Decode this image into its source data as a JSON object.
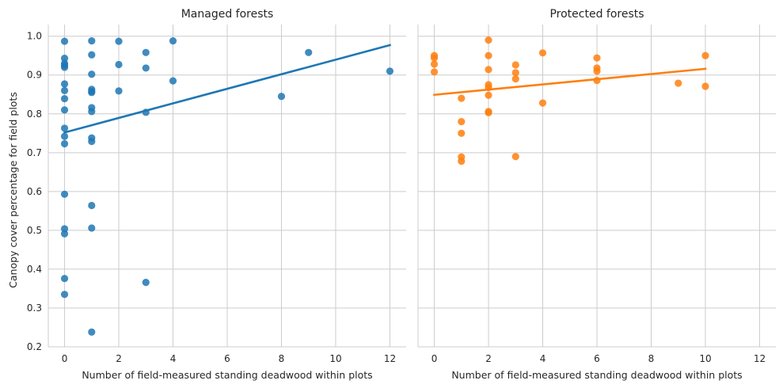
{
  "chart_data": [
    {
      "type": "scatter",
      "title": "Managed forests",
      "xlabel": "Number of field-measured standing deadwood within plots",
      "ylabel": "Canopy cover percentage for field plots",
      "xlim": [
        -0.6,
        12.6
      ],
      "ylim": [
        0.2,
        1.03
      ],
      "xticks": [
        0,
        2,
        4,
        6,
        8,
        10,
        12
      ],
      "yticks": [
        0.2,
        0.3,
        0.4,
        0.5,
        0.6,
        0.7,
        0.8,
        0.9,
        1.0
      ],
      "grid": true,
      "color": "#1f77b4",
      "points": [
        [
          0,
          0.987
        ],
        [
          0,
          0.943
        ],
        [
          0,
          0.93
        ],
        [
          0,
          0.925
        ],
        [
          0,
          0.92
        ],
        [
          0,
          0.877
        ],
        [
          0,
          0.86
        ],
        [
          0,
          0.839
        ],
        [
          0,
          0.81
        ],
        [
          0,
          0.763
        ],
        [
          0,
          0.742
        ],
        [
          0,
          0.723
        ],
        [
          0,
          0.593
        ],
        [
          0,
          0.504
        ],
        [
          0,
          0.491
        ],
        [
          0,
          0.376
        ],
        [
          0,
          0.335
        ],
        [
          1,
          0.988
        ],
        [
          1,
          0.952
        ],
        [
          1,
          0.902
        ],
        [
          1,
          0.863
        ],
        [
          1,
          0.858
        ],
        [
          1,
          0.855
        ],
        [
          1,
          0.816
        ],
        [
          1,
          0.806
        ],
        [
          1,
          0.738
        ],
        [
          1,
          0.729
        ],
        [
          1,
          0.564
        ],
        [
          1,
          0.506
        ],
        [
          1,
          0.238
        ],
        [
          2,
          0.987
        ],
        [
          2,
          0.927
        ],
        [
          2,
          0.859
        ],
        [
          3,
          0.958
        ],
        [
          3,
          0.918
        ],
        [
          3,
          0.804
        ],
        [
          3,
          0.366
        ],
        [
          4,
          0.988
        ],
        [
          4,
          0.885
        ],
        [
          8,
          0.845
        ],
        [
          9,
          0.958
        ],
        [
          12,
          0.91
        ]
      ],
      "regression": {
        "x": [
          0,
          12
        ],
        "y": [
          0.752,
          0.977
        ]
      }
    },
    {
      "type": "scatter",
      "title": "Protected forests",
      "xlabel": "Number of field-measured standing deadwood within plots",
      "ylabel": "",
      "xlim": [
        -0.6,
        12.6
      ],
      "ylim": [
        0.2,
        1.03
      ],
      "xticks": [
        0,
        2,
        4,
        6,
        8,
        10,
        12
      ],
      "yticks": [
        0.2,
        0.3,
        0.4,
        0.5,
        0.6,
        0.7,
        0.8,
        0.9,
        1.0
      ],
      "grid": true,
      "color": "#ff7f0e",
      "points": [
        [
          0,
          0.95
        ],
        [
          0,
          0.944
        ],
        [
          0,
          0.928
        ],
        [
          0,
          0.908
        ],
        [
          1,
          0.84
        ],
        [
          1,
          0.78
        ],
        [
          1,
          0.75
        ],
        [
          1,
          0.689
        ],
        [
          1,
          0.678
        ],
        [
          2,
          0.99
        ],
        [
          2,
          0.95
        ],
        [
          2,
          0.914
        ],
        [
          2,
          0.875
        ],
        [
          2,
          0.868
        ],
        [
          2,
          0.848
        ],
        [
          2,
          0.806
        ],
        [
          2,
          0.803
        ],
        [
          3,
          0.926
        ],
        [
          3,
          0.906
        ],
        [
          3,
          0.89
        ],
        [
          3,
          0.69
        ],
        [
          4,
          0.957
        ],
        [
          4,
          0.828
        ],
        [
          6,
          0.944
        ],
        [
          6,
          0.918
        ],
        [
          6,
          0.91
        ],
        [
          6,
          0.886
        ],
        [
          9,
          0.879
        ],
        [
          10,
          0.95
        ],
        [
          10,
          0.871
        ]
      ],
      "regression": {
        "x": [
          0,
          10
        ],
        "y": [
          0.849,
          0.916
        ]
      }
    }
  ]
}
